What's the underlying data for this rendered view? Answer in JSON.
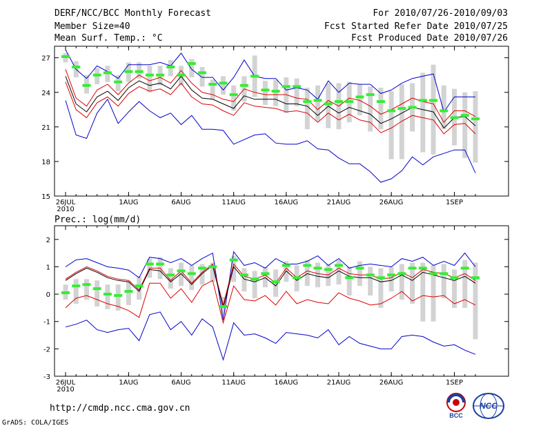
{
  "header": {
    "title": "DERF/NCC/BCC Monthly Forecast",
    "member_size": "Member Size=40",
    "variable_top": "Mean Surf. Temp.: °C",
    "forecast_period": "For 2010/07/26-2010/09/03",
    "started_refer": "Fcst Started Refer Date 2010/07/25",
    "produced": "Fcst Produced Date 2010/07/26"
  },
  "panel2_label": "Prec.: log(mm/d)",
  "footer": {
    "url": "http://cmdp.ncc.cma.gov.cn",
    "credit": "GrADS: COLA/IGES"
  },
  "logos": {
    "bcc": "BCC",
    "ncc": "NCC"
  },
  "colors": {
    "max_min": "#0000cc",
    "spread": "#dd0000",
    "mean": "#000000",
    "box": "#d3d3d3",
    "median": "#33ee33"
  },
  "chart_data": [
    {
      "type": "line",
      "title": "Mean Surf. Temp.: °C",
      "x_tick_labels": [
        "26JUL",
        "1AUG",
        "6AUG",
        "11AUG",
        "16AUG",
        "21AUG",
        "26AUG",
        "1SEP"
      ],
      "x_tick_days": [
        1,
        7,
        12,
        17,
        22,
        27,
        32,
        38
      ],
      "x_year_label": "2010",
      "ylim": [
        15,
        28
      ],
      "yticks": [
        15,
        18,
        21,
        24,
        27
      ],
      "series": [
        {
          "name": "max",
          "values": [
            27.7,
            26,
            25.2,
            26.3,
            25.8,
            25.2,
            26.4,
            26.4,
            26.4,
            26.6,
            26.3,
            27.4,
            26,
            25.3,
            25.3,
            24.2,
            25.3,
            26.8,
            25.4,
            25.2,
            25.2,
            24.2,
            24.4,
            24.2,
            23.4,
            25,
            24,
            24.8,
            24.7,
            24.7,
            23.9,
            24.2,
            24.8,
            25.2,
            25.4,
            25.6,
            22.3,
            23.6,
            23.6,
            23.6
          ]
        },
        {
          "name": "spread_upper",
          "values": [
            26,
            23.5,
            22.8,
            24.2,
            24.7,
            23.8,
            24.8,
            25.5,
            25,
            25.3,
            24.8,
            25.9,
            24.8,
            24,
            23.8,
            23.4,
            23.2,
            24.3,
            24,
            23.8,
            23.8,
            23.8,
            23.5,
            23.4,
            22.5,
            23.3,
            22.8,
            23.5,
            23.3,
            22.8,
            22.1,
            22.5,
            23,
            23.5,
            23.2,
            23,
            21.4,
            22.4,
            22.4,
            21.9
          ]
        },
        {
          "name": "mean",
          "values": [
            25.4,
            23,
            22.3,
            23.6,
            24.1,
            23.3,
            24.4,
            25,
            24.6,
            24.8,
            24.3,
            25.4,
            24.2,
            23.5,
            23.4,
            23,
            22.6,
            23.7,
            23.4,
            23.4,
            23.4,
            23,
            23,
            22.8,
            22,
            22.8,
            22.2,
            22.7,
            22.4,
            22.1,
            21.3,
            21.7,
            22.2,
            22.7,
            22.5,
            22.3,
            20.9,
            21.8,
            21.9,
            21.1
          ]
        },
        {
          "name": "spread_lower",
          "values": [
            24.9,
            22.5,
            21.8,
            23.1,
            23.6,
            22.8,
            23.9,
            24.5,
            24.1,
            24.3,
            23.8,
            24.8,
            23.6,
            23,
            22.9,
            22.4,
            22,
            23.1,
            22.8,
            22.7,
            22.6,
            22.3,
            22.4,
            22.2,
            21.4,
            22.2,
            21.6,
            22.1,
            21.6,
            21.4,
            20.5,
            20.9,
            21.5,
            22,
            21.8,
            21.6,
            20.4,
            21.2,
            21.3,
            20.4
          ]
        },
        {
          "name": "min",
          "values": [
            23.3,
            20.3,
            20,
            22.2,
            23.4,
            21.3,
            22.3,
            23.2,
            22.4,
            21.8,
            22.2,
            21.2,
            22,
            20.8,
            20.8,
            20.7,
            19.5,
            19.9,
            20.3,
            20.4,
            19.6,
            19.5,
            19.5,
            19.8,
            19.1,
            19,
            18.3,
            17.8,
            17.8,
            17.1,
            16.2,
            16.5,
            17.2,
            18.4,
            17.7,
            18.4,
            18.7,
            19,
            19,
            17
          ]
        },
        {
          "name": "median",
          "values": [
            27.1,
            26.2,
            24.6,
            25.5,
            25.7,
            24.9,
            25.8,
            25.8,
            25.5,
            25.5,
            26.2,
            25.5,
            26.5,
            25.7,
            24.7,
            24.8,
            23.8,
            24.6,
            25.4,
            24.2,
            24.1,
            24.5,
            24.5,
            23.2,
            23.3,
            23,
            23.2,
            23.2,
            23.6,
            23.8,
            23.2,
            22.4,
            22.6,
            22.7,
            23.3,
            23.3,
            22.4,
            21.8,
            22,
            21.7
          ]
        },
        {
          "name": "box_high",
          "values": [
            27.4,
            26.7,
            25.5,
            26.1,
            26.3,
            25.5,
            26.6,
            26.6,
            26.3,
            26.3,
            26.8,
            26.3,
            26.9,
            26.2,
            25.1,
            25.4,
            24.6,
            25.4,
            27.2,
            25,
            25.1,
            25.3,
            25.2,
            24.4,
            24.6,
            24.8,
            24.8,
            24.9,
            24.7,
            24.5,
            24.4,
            24.1,
            24.7,
            24.8,
            25.7,
            26.4,
            24.6,
            24.3,
            24,
            24.1
          ]
        },
        {
          "name": "box_low",
          "values": [
            26.6,
            25.3,
            23.9,
            24.7,
            24.9,
            24.1,
            24.9,
            25.2,
            24,
            24.6,
            25.4,
            24.6,
            25.3,
            24.5,
            23.4,
            23.8,
            22.4,
            23.2,
            23.6,
            22.9,
            22.8,
            22.2,
            22.8,
            20.8,
            21.5,
            20.9,
            20.8,
            21.4,
            22,
            20.6,
            20.8,
            18.2,
            18.2,
            20.6,
            18.8,
            18.6,
            20.8,
            19.4,
            18.3,
            17.9
          ]
        }
      ]
    },
    {
      "type": "line",
      "title": "Prec.: log(mm/d)",
      "x_tick_labels": [
        "26JUL",
        "1AUG",
        "6AUG",
        "11AUG",
        "16AUG",
        "21AUG",
        "26AUG",
        "1SEP"
      ],
      "x_tick_days": [
        1,
        7,
        12,
        17,
        22,
        27,
        32,
        38
      ],
      "x_year_label": "2010",
      "ylim": [
        -3,
        2.5
      ],
      "yticks": [
        -3,
        -2,
        -1,
        0,
        1,
        2
      ],
      "series": [
        {
          "name": "max",
          "values": [
            1,
            1.25,
            1.3,
            1.15,
            1,
            0.95,
            0.88,
            0.6,
            1.35,
            1.3,
            1.15,
            1.3,
            1.05,
            1.3,
            1.5,
            -0.95,
            1.55,
            1.05,
            1.15,
            0.95,
            1.3,
            1.1,
            1.1,
            1.2,
            1.4,
            1.05,
            1.3,
            0.95,
            1.05,
            1.1,
            1.05,
            1,
            1.3,
            1.2,
            1.35,
            1.05,
            1.2,
            1.05,
            1.5,
            1
          ]
        },
        {
          "name": "spread_upper",
          "values": [
            0.55,
            0.8,
            1,
            0.85,
            0.65,
            0.55,
            0.5,
            0.15,
            0.95,
            0.95,
            0.5,
            0.85,
            0.4,
            0.8,
            1.1,
            -0.4,
            1.1,
            0.65,
            0.55,
            0.7,
            0.4,
            0.95,
            0.6,
            0.85,
            0.75,
            0.7,
            0.95,
            0.75,
            0.7,
            0.7,
            0.55,
            0.6,
            0.8,
            0.6,
            0.9,
            0.8,
            0.75,
            0.6,
            0.75,
            0.5
          ]
        },
        {
          "name": "mean",
          "values": [
            0.5,
            0.75,
            0.95,
            0.8,
            0.6,
            0.5,
            0.45,
            0.1,
            0.9,
            0.85,
            0.45,
            0.75,
            0.35,
            0.75,
            1.05,
            -0.5,
            1,
            0.55,
            0.45,
            0.6,
            0.3,
            0.85,
            0.5,
            0.75,
            0.65,
            0.6,
            0.85,
            0.65,
            0.6,
            0.6,
            0.45,
            0.5,
            0.7,
            0.5,
            0.8,
            0.7,
            0.6,
            0.5,
            0.65,
            0.4
          ]
        },
        {
          "name": "spread_lower",
          "values": [
            -0.5,
            -0.15,
            -0.05,
            -0.2,
            -0.35,
            -0.45,
            -0.6,
            -0.85,
            0.4,
            0.4,
            -0.15,
            0.2,
            -0.3,
            0.3,
            0.5,
            -1.05,
            0.3,
            -0.2,
            -0.25,
            -0.05,
            -0.4,
            0.1,
            -0.35,
            -0.2,
            -0.3,
            -0.35,
            0.05,
            -0.15,
            -0.25,
            -0.4,
            -0.35,
            -0.15,
            0.1,
            -0.25,
            -0.05,
            -0.1,
            -0.05,
            -0.35,
            -0.2,
            -0.4
          ]
        },
        {
          "name": "min",
          "values": [
            -1.2,
            -1.1,
            -0.95,
            -1.3,
            -1.4,
            -1.3,
            -1.25,
            -1.7,
            -0.75,
            -0.65,
            -1.3,
            -1,
            -1.5,
            -0.9,
            -1.2,
            -2.4,
            -1.05,
            -1.5,
            -1.45,
            -1.6,
            -1.8,
            -1.4,
            -1.45,
            -1.5,
            -1.6,
            -1.3,
            -1.85,
            -1.55,
            -1.8,
            -1.9,
            -2,
            -2,
            -1.55,
            -1.5,
            -1.55,
            -1.75,
            -1.9,
            -1.85,
            -2.05,
            -2.2
          ]
        },
        {
          "name": "median",
          "values": [
            0.05,
            0.3,
            0.35,
            0.2,
            0,
            -0.05,
            0.1,
            0.3,
            1.1,
            1.1,
            0.7,
            0.85,
            0.75,
            0.95,
            1,
            -0.45,
            1.25,
            0.7,
            0.55,
            0.75,
            0.45,
            1.05,
            0.6,
            1.05,
            0.95,
            0.9,
            1.05,
            0.6,
            0.95,
            0.7,
            0.6,
            0.7,
            0.75,
            0.95,
            0.95,
            0.75,
            0.75,
            0.6,
            0.95,
            0.6
          ]
        },
        {
          "name": "box_high",
          "values": [
            0.35,
            0.55,
            0.55,
            0.5,
            0.35,
            0.35,
            0.5,
            0.65,
            1.3,
            1.35,
            0.95,
            1.15,
            1.05,
            1.1,
            1.15,
            -0.1,
            1.4,
            0.95,
            0.85,
            1,
            0.9,
            1.2,
            1.05,
            1.25,
            1.15,
            1.1,
            1.25,
            1,
            1.2,
            1,
            0.95,
            1,
            1.1,
            1.15,
            1.15,
            1.05,
            1.1,
            0.9,
            1.25,
            1.15
          ]
        },
        {
          "name": "box_low",
          "values": [
            -0.2,
            -0.35,
            -0.2,
            -0.45,
            -0.55,
            -0.6,
            -0.4,
            -0.2,
            0.6,
            0.55,
            0.2,
            0.3,
            0.15,
            0.35,
            0.45,
            -0.8,
            0.45,
            0.1,
            -0.15,
            0.25,
            -0.1,
            0.45,
            0.1,
            0.3,
            0.25,
            0.3,
            0.35,
            -0.05,
            0.3,
            -0.05,
            -0.5,
            0.1,
            -0.2,
            -0.35,
            -1,
            -1,
            -0.15,
            -0.5,
            -0.5,
            -1.65
          ]
        }
      ]
    }
  ]
}
